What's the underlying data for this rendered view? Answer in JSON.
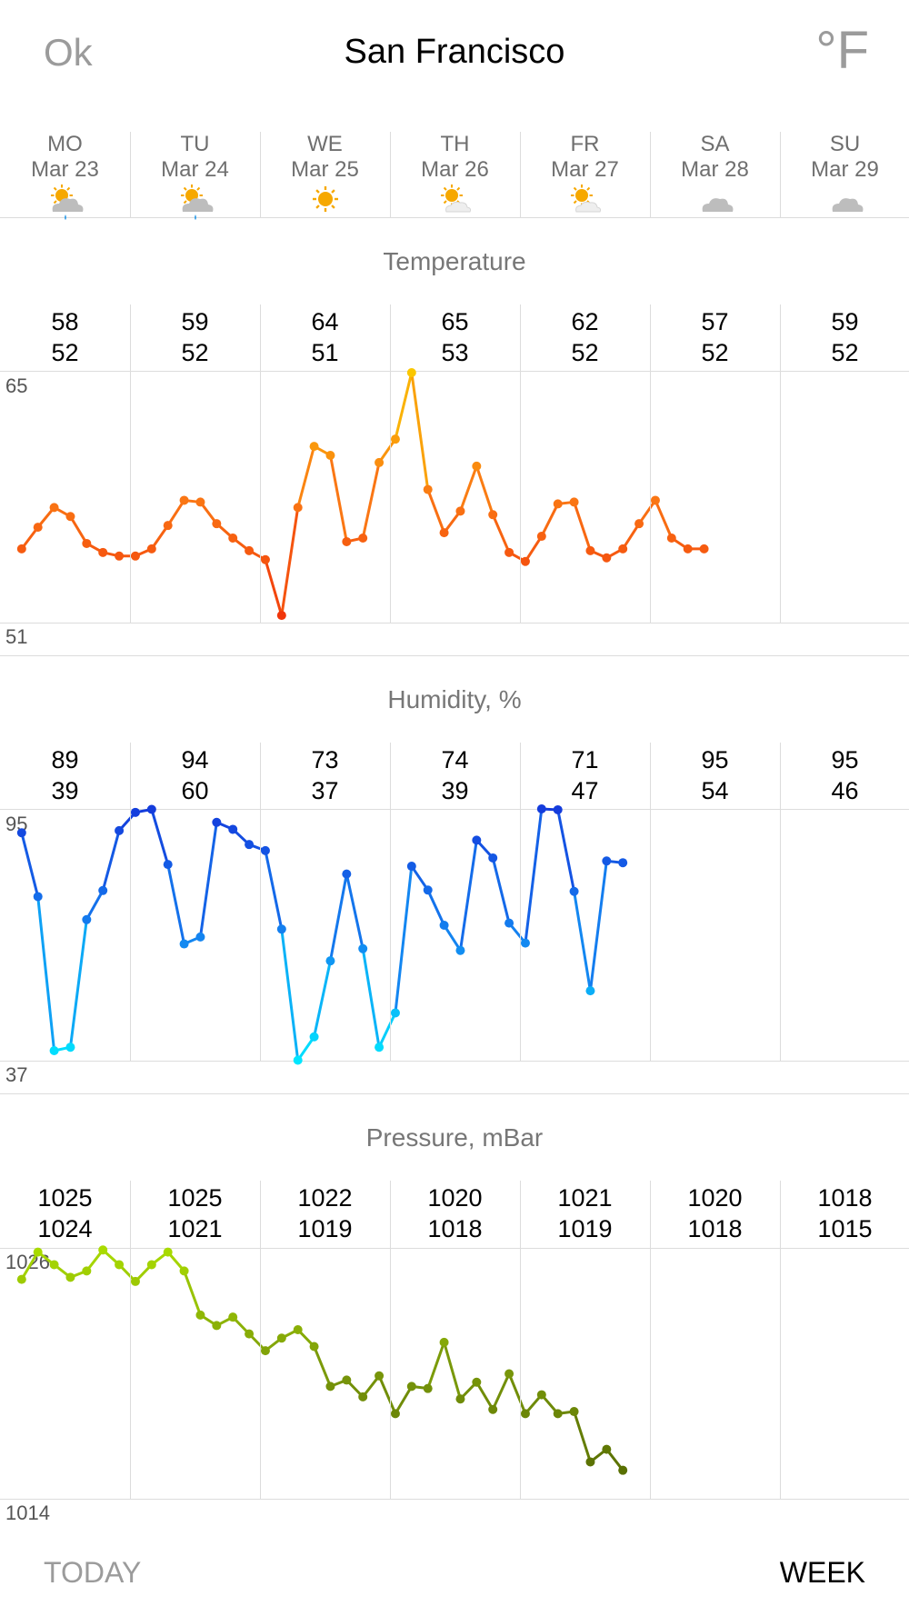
{
  "header": {
    "ok_label": "Ok",
    "city": "San Francisco",
    "unit_label": "°F"
  },
  "days": [
    {
      "name": "MO",
      "date": "Mar 23",
      "icon": "partly-sunny-rain-icon"
    },
    {
      "name": "TU",
      "date": "Mar 24",
      "icon": "partly-sunny-rain-icon"
    },
    {
      "name": "WE",
      "date": "Mar 25",
      "icon": "sun-icon"
    },
    {
      "name": "TH",
      "date": "Mar 26",
      "icon": "sun-cloud-icon"
    },
    {
      "name": "FR",
      "date": "Mar 27",
      "icon": "sun-cloud-icon"
    },
    {
      "name": "SA",
      "date": "Mar 28",
      "icon": "cloud-icon"
    },
    {
      "name": "SU",
      "date": "Mar 29",
      "icon": "cloud-icon"
    }
  ],
  "temperature": {
    "title": "Temperature",
    "max_label": "65",
    "min_label": "51",
    "daily": [
      {
        "high": "58",
        "low": "52"
      },
      {
        "high": "59",
        "low": "52"
      },
      {
        "high": "64",
        "low": "51"
      },
      {
        "high": "65",
        "low": "53"
      },
      {
        "high": "62",
        "low": "52"
      },
      {
        "high": "57",
        "low": "52"
      },
      {
        "high": "59",
        "low": "52"
      }
    ]
  },
  "humidity": {
    "title": "Humidity, %",
    "max_label": "95",
    "min_label": "37",
    "daily": [
      {
        "high": "89",
        "low": "39"
      },
      {
        "high": "94",
        "low": "60"
      },
      {
        "high": "73",
        "low": "37"
      },
      {
        "high": "74",
        "low": "39"
      },
      {
        "high": "71",
        "low": "47"
      },
      {
        "high": "95",
        "low": "54"
      },
      {
        "high": "95",
        "low": "46"
      }
    ]
  },
  "pressure": {
    "title": "Pressure, mBar",
    "max_label": "1026",
    "min_label": "1014",
    "daily": [
      {
        "high": "1025",
        "low": "1024"
      },
      {
        "high": "1025",
        "low": "1021"
      },
      {
        "high": "1022",
        "low": "1019"
      },
      {
        "high": "1020",
        "low": "1018"
      },
      {
        "high": "1021",
        "low": "1019"
      },
      {
        "high": "1020",
        "low": "1018"
      },
      {
        "high": "1018",
        "low": "1015"
      }
    ]
  },
  "footer": {
    "today_label": "TODAY",
    "week_label": "WEEK"
  },
  "chart_data": [
    {
      "type": "line",
      "name": "temperature",
      "ylim": [
        51,
        65
      ],
      "x_start_hours": 4,
      "x_step_hours": 3,
      "values": [
        55.1,
        56.3,
        57.4,
        56.9,
        55.4,
        54.9,
        54.7,
        54.7,
        55.1,
        56.4,
        57.8,
        57.7,
        56.5,
        55.7,
        55.0,
        54.5,
        51.4,
        57.4,
        60.8,
        60.3,
        55.5,
        55.7,
        59.9,
        61.2,
        64.9,
        58.4,
        56.0,
        57.2,
        59.7,
        57.0,
        54.9,
        54.4,
        55.8,
        57.6,
        57.7,
        55.0,
        54.6,
        55.1,
        56.5,
        57.8,
        55.7,
        55.1,
        55.1
      ]
    },
    {
      "type": "line",
      "name": "humidity",
      "ylim": [
        37,
        95
      ],
      "x_start_hours": 4,
      "x_step_hours": 3,
      "values": [
        89.5,
        74.8,
        39.3,
        40.1,
        69.5,
        76.2,
        90.0,
        94.2,
        94.9,
        82.2,
        63.9,
        65.5,
        91.9,
        90.3,
        86.8,
        85.4,
        67.3,
        37.1,
        42.5,
        60.0,
        80.0,
        62.8,
        40.1,
        48.0,
        81.8,
        76.3,
        68.2,
        62.4,
        87.8,
        83.7,
        68.7,
        64.1,
        95.0,
        94.8,
        76.0,
        53.1,
        83.0,
        82.6
      ]
    },
    {
      "type": "line",
      "name": "pressure",
      "ylim": [
        1014,
        1026
      ],
      "x_start_hours": 4,
      "x_step_hours": 3,
      "values": [
        1024.5,
        1025.8,
        1025.2,
        1024.6,
        1024.9,
        1025.9,
        1025.2,
        1024.4,
        1025.2,
        1025.8,
        1024.9,
        1022.8,
        1022.3,
        1022.7,
        1021.9,
        1021.1,
        1021.7,
        1022.1,
        1021.3,
        1019.4,
        1019.7,
        1018.9,
        1019.9,
        1018.1,
        1019.4,
        1019.3,
        1021.5,
        1018.8,
        1019.6,
        1018.3,
        1020.0,
        1018.1,
        1019.0,
        1018.1,
        1018.2,
        1015.8,
        1016.4,
        1015.4
      ]
    }
  ]
}
